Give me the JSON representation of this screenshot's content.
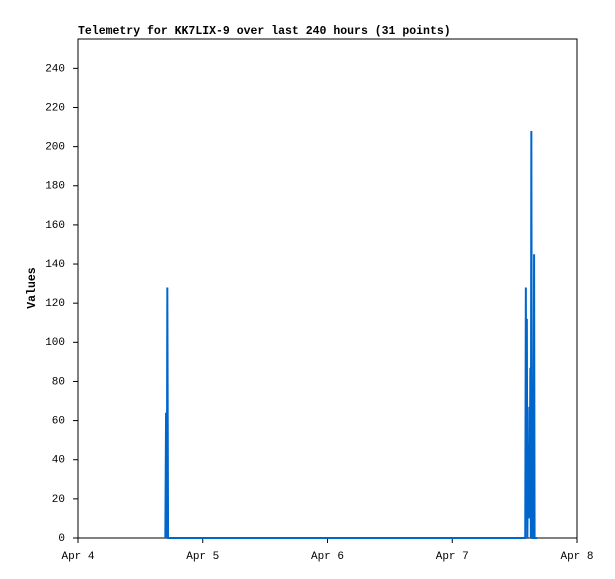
{
  "chart_data": {
    "type": "line",
    "title": "Telemetry for KK7LIX-9 over last 240 hours (31 points)",
    "y_label": "Values",
    "x": [
      0.7,
      0.706,
      0.712,
      0.716,
      0.722,
      1.2,
      1.8,
      2.4,
      3.0,
      3.5,
      3.585,
      3.59,
      3.594,
      3.598,
      3.602,
      3.606,
      3.61,
      3.614,
      3.618,
      3.622,
      3.626,
      3.63,
      3.634,
      3.638,
      3.642,
      3.65,
      3.656,
      3.66,
      3.664,
      3.67,
      3.68
    ],
    "series": [
      {
        "color": "#0066cc",
        "values": [
          0,
          64,
          0,
          128,
          0,
          0,
          0,
          0,
          0,
          0,
          0,
          128,
          10,
          112,
          0,
          30,
          48,
          10,
          67,
          30,
          87,
          0,
          208,
          40,
          0,
          0,
          145,
          0,
          0,
          0,
          0
        ]
      }
    ],
    "xlim": [
      0,
      4
    ],
    "xticks": [
      {
        "value": 0,
        "label": "Apr 4"
      },
      {
        "value": 1,
        "label": "Apr 5"
      },
      {
        "value": 2,
        "label": "Apr 6"
      },
      {
        "value": 3,
        "label": "Apr 7"
      },
      {
        "value": 4,
        "label": "Apr 8"
      }
    ],
    "ylim": [
      0,
      255
    ],
    "yticks": [
      0,
      20,
      40,
      60,
      80,
      100,
      120,
      140,
      160,
      180,
      200,
      220,
      240
    ],
    "grid": false
  }
}
